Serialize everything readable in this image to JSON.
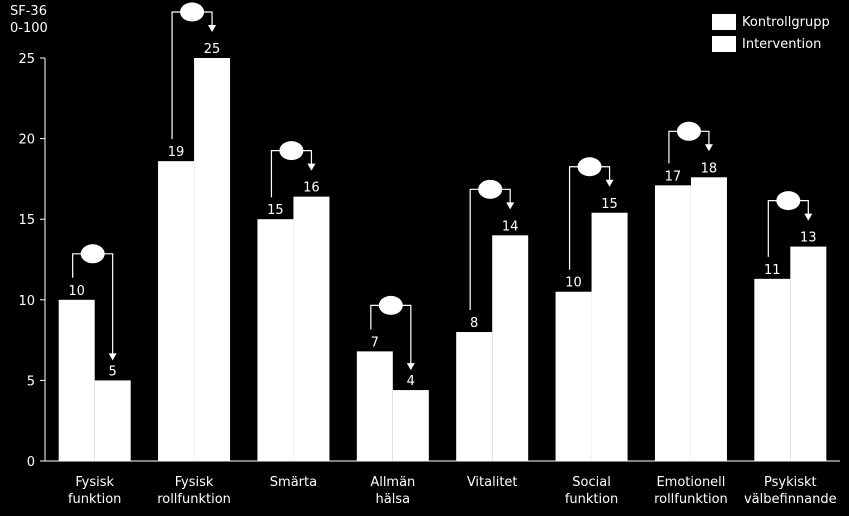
{
  "chart_data": {
    "type": "bar",
    "ylabel_lines": [
      "SF-36",
      "0-100"
    ],
    "ylim": [
      0,
      25
    ],
    "yticks": [
      0,
      5,
      10,
      15,
      20,
      25
    ],
    "categories": [
      [
        "Fysisk",
        "funktion"
      ],
      [
        "Fysisk",
        "rollfunktion"
      ],
      [
        "Smärta"
      ],
      [
        "Allmän",
        "hälsa"
      ],
      [
        "Vitalitet"
      ],
      [
        "Social",
        "funktion"
      ],
      [
        "Emotionell",
        "rollfunktion"
      ],
      [
        "Psykiskt",
        "välbefinnande"
      ]
    ],
    "series": [
      {
        "name": "Kontrollgrupp",
        "values": [
          10,
          18.6,
          15,
          6.8,
          8,
          10.5,
          17.1,
          11.3
        ],
        "labels": [
          "10",
          "19",
          "15",
          "7",
          "8",
          "10",
          "17",
          "11"
        ]
      },
      {
        "name": "Intervention",
        "values": [
          5,
          25,
          16.4,
          4.4,
          14,
          15.4,
          17.6,
          13.3
        ],
        "labels": [
          "5",
          "25",
          "16",
          "4",
          "14",
          "15",
          "18",
          "13"
        ]
      }
    ],
    "grid": false,
    "legend_position": "top-right",
    "bar_color": "#ffffff",
    "background": "#000000"
  }
}
